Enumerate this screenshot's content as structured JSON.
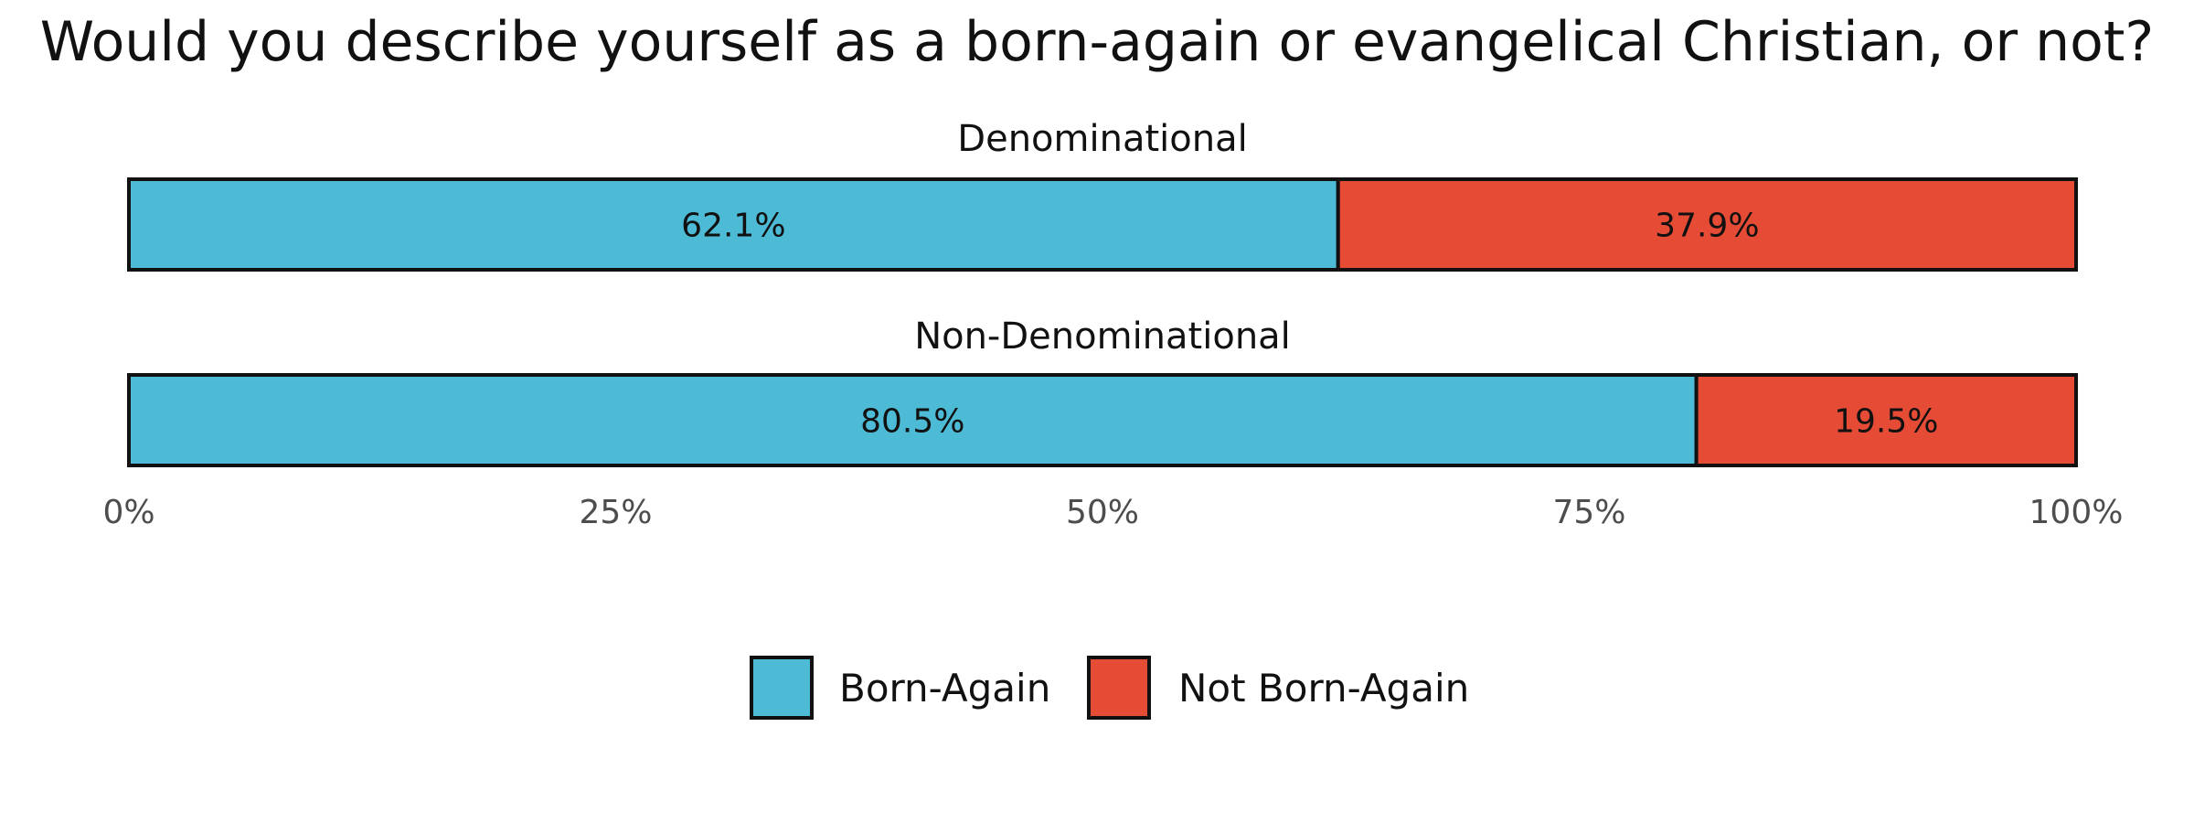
{
  "chart_data": {
    "type": "bar",
    "orientation": "horizontal",
    "stacked": true,
    "title": "Would you describe yourself as a born-again or evangelical Christian, or not?",
    "categories": [
      "Denominational",
      "Non-Denominational"
    ],
    "series": [
      {
        "name": "Born-Again",
        "color": "#4dbad6",
        "values": [
          62.1,
          80.5
        ],
        "labels": [
          "62.1%",
          "80.5%"
        ]
      },
      {
        "name": "Not Born-Again",
        "color": "#e64b35",
        "values": [
          37.9,
          19.5
        ],
        "labels": [
          "37.9%",
          "19.5%"
        ]
      }
    ],
    "xlim": [
      0,
      100
    ],
    "xticks": [
      0,
      25,
      50,
      75,
      100
    ],
    "xtick_labels": [
      "0%",
      "25%",
      "50%",
      "75%",
      "100%"
    ],
    "xlabel": "",
    "ylabel": "",
    "grid": false,
    "legend_position": "bottom"
  }
}
